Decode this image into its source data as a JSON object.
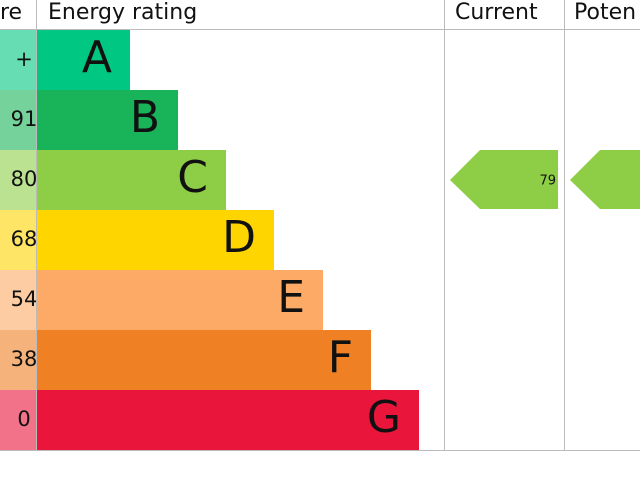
{
  "header": {
    "score": "re",
    "rating": "Energy rating",
    "current": "Current",
    "potential": "Poten"
  },
  "bands": [
    {
      "score": "+",
      "letter": "A"
    },
    {
      "score": "91",
      "letter": "B"
    },
    {
      "score": "80",
      "letter": "C"
    },
    {
      "score": "68",
      "letter": "D"
    },
    {
      "score": "54",
      "letter": "E"
    },
    {
      "score": "38",
      "letter": "F"
    },
    {
      "score": "0",
      "letter": "G"
    }
  ],
  "current": {
    "value": "79"
  }
}
